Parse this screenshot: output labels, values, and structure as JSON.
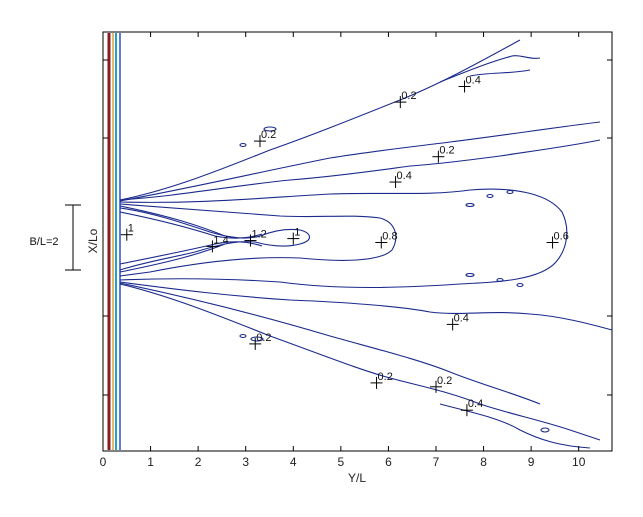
{
  "chart_data": {
    "type": "contour",
    "xlabel": "Y/L",
    "ylabel": "X/Lo",
    "xlim": [
      0,
      10.7
    ],
    "xticks": [
      "0",
      "1",
      "2",
      "3",
      "4",
      "5",
      "6",
      "7",
      "8",
      "9",
      "10"
    ],
    "annotation": "B/L=2",
    "colors": {
      "contour": "#1a2a8c",
      "wall": [
        "#8b1a1a",
        "#d9a23a",
        "#1fa3c9",
        "#2a4fd0"
      ]
    },
    "contour_labels": [
      {
        "text": "1",
        "x": 0.5,
        "y": 0.2
      },
      {
        "text": "1.4",
        "x": 2.3,
        "y": -0.1
      },
      {
        "text": "1.2",
        "x": 3.1,
        "y": 0.05
      },
      {
        "text": "1",
        "x": 4.0,
        "y": 0.1
      },
      {
        "text": "0.8",
        "x": 5.85,
        "y": 0.0
      },
      {
        "text": "0.6",
        "x": 9.45,
        "y": 0.0
      },
      {
        "text": "0.2",
        "x": 3.3,
        "y": 2.6
      },
      {
        "text": "0.2",
        "x": 6.25,
        "y": 3.6
      },
      {
        "text": "0.4",
        "x": 7.6,
        "y": 4.0
      },
      {
        "text": "0.2",
        "x": 7.05,
        "y": 2.2
      },
      {
        "text": "0.4",
        "x": 6.15,
        "y": 1.55
      },
      {
        "text": "0.4",
        "x": 7.35,
        "y": -2.1
      },
      {
        "text": "0.2",
        "x": 3.2,
        "y": -2.6
      },
      {
        "text": "0.2",
        "x": 5.75,
        "y": -3.6
      },
      {
        "text": "0.2",
        "x": 7.0,
        "y": -3.7
      },
      {
        "text": "0.4",
        "x": 7.65,
        "y": -4.3
      }
    ]
  }
}
